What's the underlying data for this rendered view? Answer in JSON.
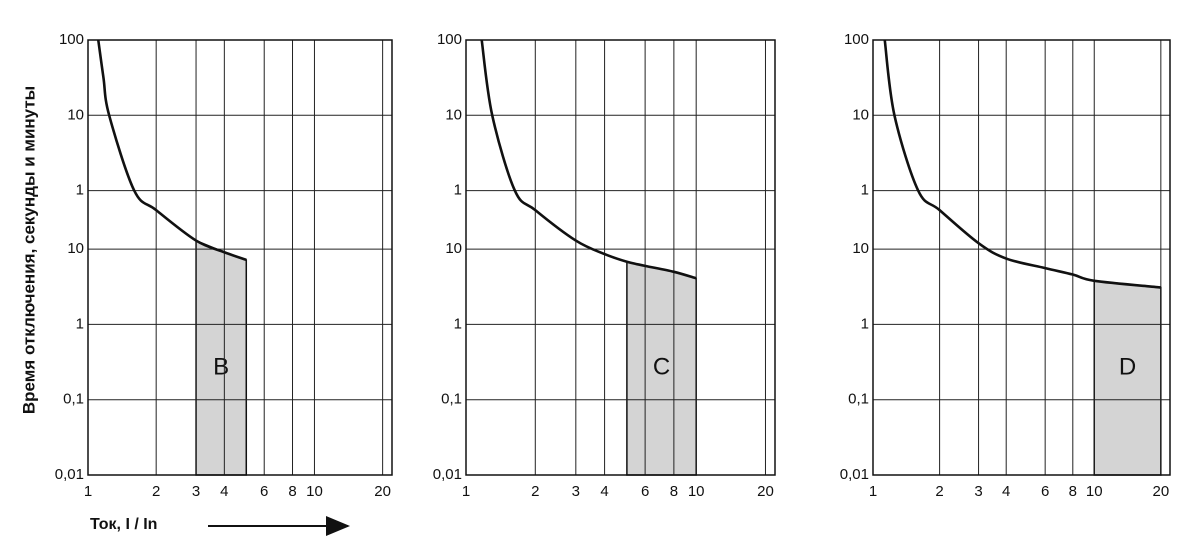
{
  "chart_data": [
    {
      "type": "line",
      "xscale": "log",
      "yscale": "log",
      "grid": true,
      "ylabel": "Время отключения, секунды и минуты",
      "xlabel": "Ток,  I / In",
      "xlim": [
        1,
        22
      ],
      "xticks": [
        1,
        2,
        3,
        4,
        6,
        8,
        10,
        20
      ],
      "ylim": [
        0.01,
        6000
      ],
      "yticks": [
        {
          "value": 0.01,
          "label": "0,01"
        },
        {
          "value": 0.1,
          "label": "0,1"
        },
        1,
        10,
        {
          "value": 60,
          "label": "1"
        },
        {
          "value": 600,
          "label": "10"
        },
        {
          "value": 6000,
          "label": "100"
        }
      ],
      "x": [
        1.11,
        1.17,
        1.24,
        1.6,
        2,
        3,
        4,
        5
      ],
      "values": [
        6000,
        1900,
        600,
        60,
        33,
        13,
        9.1,
        7.2
      ],
      "color": "#111111",
      "region": {
        "label": "B",
        "x": [
          3,
          5
        ],
        "color": "#d4d4d4"
      }
    },
    {
      "type": "line",
      "xscale": "log",
      "yscale": "log",
      "grid": true,
      "xlim": [
        1,
        22
      ],
      "xticks": [
        1,
        2,
        3,
        4,
        6,
        8,
        10,
        20
      ],
      "ylim": [
        0.01,
        6000
      ],
      "yticks": [
        {
          "value": 0.01,
          "label": "0,01"
        },
        {
          "value": 0.1,
          "label": "0,1"
        },
        1,
        10,
        {
          "value": 60,
          "label": "1"
        },
        {
          "value": 600,
          "label": "10"
        },
        {
          "value": 6000,
          "label": "100"
        }
      ],
      "x": [
        1.17,
        1.3,
        1.63,
        2,
        3,
        4,
        5,
        6,
        8,
        10
      ],
      "values": [
        6000,
        600,
        60,
        33,
        13,
        8.6,
        6.8,
        6,
        5,
        4.1
      ],
      "color": "#111111",
      "region": {
        "label": "C",
        "x": [
          5,
          10
        ],
        "color": "#d4d4d4"
      }
    },
    {
      "type": "line",
      "xscale": "log",
      "yscale": "log",
      "grid": true,
      "xlim": [
        1,
        22
      ],
      "xticks": [
        1,
        2,
        3,
        4,
        6,
        8,
        10,
        20
      ],
      "ylim": [
        0.01,
        6000
      ],
      "yticks": [
        {
          "value": 0.01,
          "label": "0,01"
        },
        {
          "value": 0.1,
          "label": "0,1"
        },
        1,
        10,
        {
          "value": 60,
          "label": "1"
        },
        {
          "value": 600,
          "label": "10"
        },
        {
          "value": 6000,
          "label": "100"
        }
      ],
      "x": [
        1.13,
        1.25,
        1.6,
        2,
        3,
        4,
        6,
        8,
        10,
        20
      ],
      "values": [
        6000,
        600,
        60,
        33,
        12,
        7.5,
        5.6,
        4.6,
        3.8,
        3.1
      ],
      "color": "#111111",
      "region": {
        "label": "D",
        "x": [
          10,
          20
        ],
        "color": "#d4d4d4"
      }
    }
  ]
}
